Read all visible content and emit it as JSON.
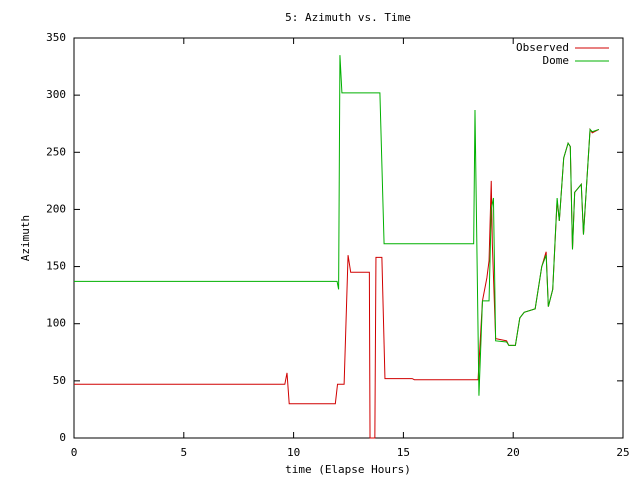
{
  "chart_data": {
    "type": "line",
    "title": "5: Azimuth vs. Time",
    "x_label": "time (Elapse Hours)",
    "y_label": "Azimuth",
    "xlim": [
      0,
      25
    ],
    "xticks": [
      0,
      5,
      10,
      15,
      20,
      25
    ],
    "ylim": [
      0,
      350
    ],
    "yticks": [
      0,
      50,
      100,
      150,
      200,
      250,
      300,
      350
    ],
    "grid": false,
    "legend": "top-right",
    "series": [
      {
        "name": "Observed",
        "color": "#d00000",
        "x": [
          0,
          9.6,
          9.7,
          9.8,
          11.9,
          12.0,
          12.3,
          12.48,
          12.6,
          13.45,
          13.48,
          13.7,
          13.75,
          14.02,
          14.16,
          15.4,
          15.5,
          18.3,
          18.4,
          18.6,
          18.8,
          18.9,
          19.0,
          19.05,
          19.2,
          19.7,
          19.8,
          20.1,
          20.3,
          20.5,
          21.0,
          21.3,
          21.5,
          21.6,
          21.8,
          22.0,
          22.1,
          22.3,
          22.5,
          22.6,
          22.7,
          22.8,
          23.1,
          23.2,
          23.5,
          23.6,
          23.9
        ],
        "values": [
          47,
          47,
          57,
          30,
          30,
          47,
          47,
          160,
          145,
          145,
          0,
          0,
          158,
          158,
          52,
          52,
          51,
          51,
          51,
          120,
          140,
          155,
          225,
          170,
          87,
          85,
          81,
          81,
          105,
          110,
          113,
          150,
          163,
          115,
          130,
          208,
          190,
          245,
          258,
          255,
          165,
          215,
          222,
          178,
          270,
          267,
          270
        ]
      },
      {
        "name": "Dome",
        "color": "#00b000",
        "x": [
          0,
          11.98,
          12.05,
          12.11,
          12.2,
          13.93,
          14.12,
          18.2,
          18.26,
          18.44,
          18.6,
          18.9,
          19.0,
          19.1,
          19.2,
          19.7,
          19.8,
          20.1,
          20.3,
          20.5,
          21.0,
          21.3,
          21.5,
          21.6,
          21.8,
          22.0,
          22.1,
          22.3,
          22.5,
          22.6,
          22.7,
          22.8,
          23.1,
          23.2,
          23.5,
          23.6,
          23.9
        ],
        "values": [
          137,
          137,
          130,
          335,
          302,
          302,
          170,
          170,
          287,
          37,
          120,
          120,
          200,
          210,
          85,
          84,
          81,
          81,
          105,
          110,
          113,
          150,
          160,
          115,
          130,
          210,
          190,
          245,
          258,
          255,
          165,
          215,
          222,
          178,
          270,
          268,
          270
        ]
      }
    ]
  }
}
